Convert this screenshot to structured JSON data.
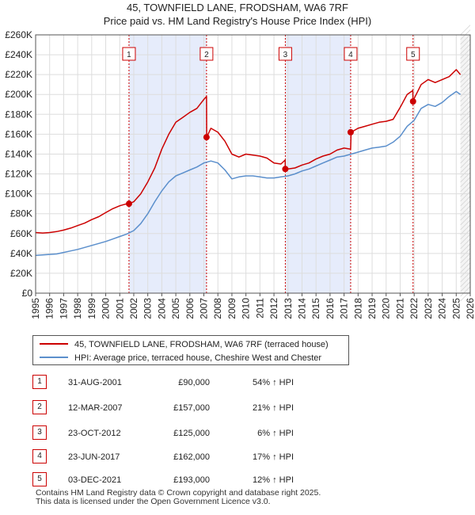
{
  "chart_data": {
    "type": "line",
    "title": "45, TOWNFIELD LANE, FRODSHAM, WA6 7RF",
    "subtitle": "Price paid vs. HM Land Registry's House Price Index (HPI)",
    "xlabel": "",
    "ylabel": "",
    "xlim": [
      1995,
      2026
    ],
    "ylim": [
      0,
      260000
    ],
    "x_ticks": [
      "1995",
      "1996",
      "1997",
      "1998",
      "1999",
      "2000",
      "2001",
      "2002",
      "2003",
      "2004",
      "2005",
      "2006",
      "2007",
      "2008",
      "2009",
      "2010",
      "2011",
      "2012",
      "2013",
      "2014",
      "2015",
      "2016",
      "2017",
      "2018",
      "2019",
      "2020",
      "2021",
      "2022",
      "2023",
      "2024",
      "2025",
      "2026"
    ],
    "y_ticks": [
      {
        "value": 0,
        "label": "£0"
      },
      {
        "value": 20000,
        "label": "£20K"
      },
      {
        "value": 40000,
        "label": "£40K"
      },
      {
        "value": 60000,
        "label": "£60K"
      },
      {
        "value": 80000,
        "label": "£80K"
      },
      {
        "value": 100000,
        "label": "£100K"
      },
      {
        "value": 120000,
        "label": "£120K"
      },
      {
        "value": 140000,
        "label": "£140K"
      },
      {
        "value": 160000,
        "label": "£160K"
      },
      {
        "value": 180000,
        "label": "£180K"
      },
      {
        "value": 200000,
        "label": "£200K"
      },
      {
        "value": 220000,
        "label": "£220K"
      },
      {
        "value": 240000,
        "label": "£240K"
      },
      {
        "value": 260000,
        "label": "£260K"
      }
    ],
    "grid": true,
    "colors": {
      "property": "#cc0000",
      "hpi": "#5b8fcc",
      "band": "#e6ecfb",
      "marker_line": "#cc0000"
    },
    "series": [
      {
        "name": "45, TOWNFIELD LANE, FRODSHAM, WA6 7RF (terraced house)",
        "color": "#cc0000",
        "x": [
          1995.0,
          1995.5,
          1996.0,
          1996.5,
          1997.0,
          1997.5,
          1998.0,
          1998.5,
          1999.0,
          1999.5,
          2000.0,
          2000.5,
          2001.0,
          2001.5,
          2001.66,
          2002.0,
          2002.5,
          2003.0,
          2003.5,
          2004.0,
          2004.5,
          2005.0,
          2005.5,
          2006.0,
          2006.5,
          2007.0,
          2007.19,
          2007.2,
          2007.5,
          2008.0,
          2008.5,
          2009.0,
          2009.5,
          2010.0,
          2010.5,
          2011.0,
          2011.5,
          2012.0,
          2012.5,
          2012.8,
          2012.81,
          2013.0,
          2013.5,
          2014.0,
          2014.5,
          2015.0,
          2015.5,
          2016.0,
          2016.5,
          2017.0,
          2017.47,
          2017.5,
          2018.0,
          2018.5,
          2019.0,
          2019.5,
          2020.0,
          2020.5,
          2021.0,
          2021.5,
          2021.9,
          2021.92,
          2022.0,
          2022.5,
          2023.0,
          2023.5,
          2024.0,
          2024.5,
          2025.0,
          2025.3
        ],
        "values": [
          61000,
          60500,
          61000,
          62000,
          63500,
          65500,
          68000,
          70500,
          74000,
          77000,
          81000,
          85000,
          88000,
          90000,
          90000,
          92000,
          100000,
          112000,
          126000,
          145000,
          160000,
          172000,
          177000,
          182000,
          186000,
          195000,
          198000,
          157000,
          166000,
          162000,
          153000,
          140000,
          137000,
          140000,
          139000,
          138000,
          136000,
          131000,
          130000,
          134000,
          125000,
          125000,
          126000,
          129000,
          131000,
          135000,
          138000,
          140000,
          144000,
          146000,
          145000,
          162000,
          166000,
          168000,
          170000,
          172000,
          173000,
          175000,
          187000,
          200000,
          204000,
          193000,
          196000,
          210000,
          215000,
          212000,
          215000,
          218000,
          225000,
          220000
        ]
      },
      {
        "name": "HPI: Average price, terraced house, Cheshire West and Chester",
        "color": "#5b8fcc",
        "x": [
          1995.0,
          1995.5,
          1996.0,
          1996.5,
          1997.0,
          1997.5,
          1998.0,
          1998.5,
          1999.0,
          1999.5,
          2000.0,
          2000.5,
          2001.0,
          2001.5,
          2002.0,
          2002.5,
          2003.0,
          2003.5,
          2004.0,
          2004.5,
          2005.0,
          2005.5,
          2006.0,
          2006.5,
          2007.0,
          2007.5,
          2008.0,
          2008.5,
          2009.0,
          2009.5,
          2010.0,
          2010.5,
          2011.0,
          2011.5,
          2012.0,
          2012.5,
          2013.0,
          2013.5,
          2014.0,
          2014.5,
          2015.0,
          2015.5,
          2016.0,
          2016.5,
          2017.0,
          2017.5,
          2018.0,
          2018.5,
          2019.0,
          2019.5,
          2020.0,
          2020.5,
          2021.0,
          2021.5,
          2022.0,
          2022.5,
          2023.0,
          2023.5,
          2024.0,
          2024.5,
          2025.0,
          2025.3
        ],
        "values": [
          38000,
          38500,
          39000,
          39500,
          41000,
          42500,
          44000,
          46000,
          48000,
          50000,
          52000,
          54500,
          57000,
          59500,
          63000,
          70000,
          80000,
          92000,
          103000,
          112000,
          118000,
          121000,
          124000,
          127000,
          131000,
          133000,
          131000,
          124000,
          115000,
          117000,
          118000,
          118000,
          117000,
          116000,
          116000,
          117000,
          118000,
          120000,
          123000,
          125000,
          128000,
          131000,
          134000,
          137000,
          138000,
          140000,
          142000,
          144000,
          146000,
          147000,
          148000,
          152000,
          158000,
          168000,
          174000,
          186000,
          190000,
          188000,
          192000,
          198000,
          203000,
          200000
        ]
      }
    ],
    "transactions": [
      {
        "id": "1",
        "date": "31-AUG-2001",
        "x": 2001.66,
        "price_value": 90000,
        "price": "£90,000",
        "hpi": "54% ↑ HPI"
      },
      {
        "id": "2",
        "date": "12-MAR-2007",
        "x": 2007.19,
        "price_value": 157000,
        "price": "£157,000",
        "hpi": "21% ↑ HPI"
      },
      {
        "id": "3",
        "date": "23-OCT-2012",
        "x": 2012.81,
        "price_value": 125000,
        "price": "£125,000",
        "hpi": "6% ↑ HPI"
      },
      {
        "id": "4",
        "date": "23-JUN-2017",
        "x": 2017.47,
        "price_value": 162000,
        "price": "£162,000",
        "hpi": "17% ↑ HPI"
      },
      {
        "id": "5",
        "date": "03-DEC-2021",
        "x": 2021.92,
        "price_value": 193000,
        "price": "£193,000",
        "hpi": "12% ↑ HPI"
      }
    ]
  },
  "legend": {
    "property_label": "45, TOWNFIELD LANE, FRODSHAM, WA6 7RF (terraced house)",
    "hpi_label": "HPI: Average price, terraced house, Cheshire West and Chester"
  },
  "footer": {
    "line1": "Contains HM Land Registry data © Crown copyright and database right 2025.",
    "line2": "This data is licensed under the Open Government Licence v3.0."
  }
}
